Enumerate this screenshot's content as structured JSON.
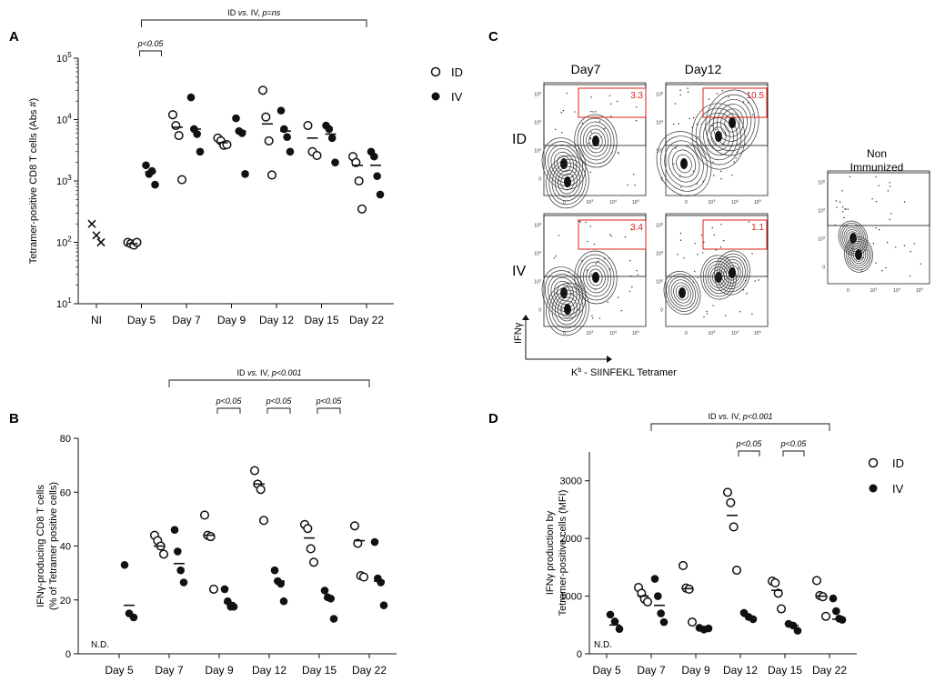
{
  "panel_letters": {
    "A": "A",
    "B": "B",
    "C": "C",
    "D": "D"
  },
  "legend": {
    "id": "ID",
    "iv": "IV"
  },
  "chart_data": [
    {
      "id": "A",
      "type": "scatter",
      "yscale": "log",
      "ylabel": "Tetramer-positive CD8 T cells (Abs #)",
      "ylim": [
        10,
        100000
      ],
      "yticks": [
        {
          "v": 10,
          "base": "10",
          "exp": "1"
        },
        {
          "v": 100,
          "base": "10",
          "exp": "2"
        },
        {
          "v": 1000,
          "base": "10",
          "exp": "3"
        },
        {
          "v": 10000,
          "base": "10",
          "exp": "4"
        },
        {
          "v": 100000,
          "base": "10",
          "exp": "5"
        }
      ],
      "categories": [
        "NI",
        "Day 5",
        "Day 7",
        "Day 9",
        "Day 12",
        "Day 15",
        "Day 22"
      ],
      "series": [
        {
          "name": "NI",
          "marker": "x",
          "points": [
            {
              "cat": 0,
              "values": [
                200,
                130,
                100
              ]
            }
          ],
          "medians": []
        },
        {
          "name": "ID",
          "marker": "open",
          "points": [
            {
              "cat": 1,
              "values": [
                100,
                95,
                90,
                100
              ]
            },
            {
              "cat": 2,
              "values": [
                12000,
                8000,
                5500,
                1050
              ]
            },
            {
              "cat": 3,
              "values": [
                5000,
                4500,
                3800,
                3900
              ]
            },
            {
              "cat": 4,
              "values": [
                30000,
                11000,
                4500,
                1250
              ]
            },
            {
              "cat": 5,
              "values": [
                8000,
                3000,
                2600
              ]
            },
            {
              "cat": 6,
              "values": [
                2500,
                2000,
                1000,
                350
              ]
            }
          ],
          "medians": [
            {
              "cat": 1,
              "v": 95
            },
            {
              "cat": 2,
              "v": 7500
            },
            {
              "cat": 3,
              "v": 4200
            },
            {
              "cat": 4,
              "v": 8500
            },
            {
              "cat": 5,
              "v": 5000
            },
            {
              "cat": 6,
              "v": 1800
            }
          ]
        },
        {
          "name": "IV",
          "marker": "filled",
          "points": [
            {
              "cat": 1,
              "values": [
                1800,
                1300,
                1450,
                870
              ]
            },
            {
              "cat": 2,
              "values": [
                23000,
                7000,
                5800,
                3000
              ]
            },
            {
              "cat": 3,
              "values": [
                10500,
                6500,
                6000,
                1300
              ]
            },
            {
              "cat": 4,
              "values": [
                14000,
                7000,
                5200,
                3000
              ]
            },
            {
              "cat": 5,
              "values": [
                8000,
                7000,
                5000,
                2000
              ]
            },
            {
              "cat": 6,
              "values": [
                3000,
                2500,
                1200,
                600
              ]
            }
          ],
          "medians": [
            {
              "cat": 1,
              "v": 1400
            },
            {
              "cat": 2,
              "v": 7000
            },
            {
              "cat": 3,
              "v": 6500
            },
            {
              "cat": 4,
              "v": 6500
            },
            {
              "cat": 5,
              "v": 5800
            },
            {
              "cat": 6,
              "v": 1800
            }
          ]
        }
      ],
      "annotations": [
        {
          "text": "p<0.05",
          "from": 1,
          "to": 1.4,
          "level": 1
        },
        {
          "prefix": "ID ",
          "italic": "vs.",
          "mid": " IV, ",
          "italic2": "p=ns",
          "from": 1,
          "to": 6,
          "level": 0
        }
      ]
    },
    {
      "id": "B",
      "type": "scatter",
      "yscale": "linear",
      "ylabel": "IFNγ-producing CD8 T cells",
      "ylabel2": "(% of Tetramer positive cells)",
      "ylim": [
        0,
        80
      ],
      "yticks": [
        {
          "v": 0,
          "t": "0"
        },
        {
          "v": 20,
          "t": "20"
        },
        {
          "v": 40,
          "t": "40"
        },
        {
          "v": 60,
          "t": "60"
        },
        {
          "v": 80,
          "t": "80"
        }
      ],
      "categories": [
        "Day 5",
        "Day 7",
        "Day 9",
        "Day 12",
        "Day 15",
        "Day 22"
      ],
      "nd": "N.D.",
      "series": [
        {
          "name": "ID",
          "marker": "open",
          "points": [
            {
              "cat": 1,
              "values": [
                44,
                42,
                40,
                37
              ]
            },
            {
              "cat": 2,
              "values": [
                51.5,
                44,
                43.5,
                24
              ]
            },
            {
              "cat": 3,
              "values": [
                68,
                63,
                61,
                49.5
              ]
            },
            {
              "cat": 4,
              "values": [
                48,
                46.5,
                39,
                34
              ]
            },
            {
              "cat": 5,
              "values": [
                47.5,
                41,
                29,
                28.5
              ]
            }
          ],
          "medians": [
            {
              "cat": 1,
              "v": 40
            },
            {
              "cat": 2,
              "v": 44
            },
            {
              "cat": 3,
              "v": 63
            },
            {
              "cat": 4,
              "v": 43
            },
            {
              "cat": 5,
              "v": 42
            }
          ]
        },
        {
          "name": "IV",
          "marker": "filled",
          "points": [
            {
              "cat": 0,
              "values": [
                33,
                15,
                13.5
              ]
            },
            {
              "cat": 1,
              "values": [
                46,
                38,
                31,
                26.5
              ]
            },
            {
              "cat": 2,
              "values": [
                24,
                19.5,
                17.5,
                17.5
              ]
            },
            {
              "cat": 3,
              "values": [
                31,
                27,
                26,
                19.5
              ]
            },
            {
              "cat": 4,
              "values": [
                23.5,
                21,
                20.5,
                13
              ]
            },
            {
              "cat": 5,
              "values": [
                41.5,
                28,
                26.5,
                18
              ]
            }
          ],
          "medians": [
            {
              "cat": 0,
              "v": 18
            },
            {
              "cat": 1,
              "v": 33.5
            },
            {
              "cat": 2,
              "v": 19
            },
            {
              "cat": 3,
              "v": 27
            },
            {
              "cat": 4,
              "v": 20.5
            },
            {
              "cat": 5,
              "v": 27
            }
          ]
        }
      ],
      "annotations": [
        {
          "text": "p<0.05",
          "from": 2,
          "to": 2.4,
          "level": 1
        },
        {
          "text": "p<0.05",
          "from": 3,
          "to": 3.4,
          "level": 1
        },
        {
          "text": "p<0.05",
          "from": 4,
          "to": 4.4,
          "level": 1
        },
        {
          "prefix": "ID ",
          "italic": "vs.",
          "mid": " IV, ",
          "italic2": "p<0.001",
          "from": 1,
          "to": 5,
          "level": 0
        }
      ]
    },
    {
      "id": "D",
      "type": "scatter",
      "yscale": "linear",
      "ylabel": "IFNγ production by",
      "ylabel2": "Tetramer-positive cells (MFI)",
      "ylim": [
        0,
        3500
      ],
      "yticks": [
        {
          "v": 0,
          "t": "0"
        },
        {
          "v": 1000,
          "t": "1000"
        },
        {
          "v": 2000,
          "t": "2000"
        },
        {
          "v": 3000,
          "t": "3000"
        }
      ],
      "categories": [
        "Day 5",
        "Day 7",
        "Day 9",
        "Day 12",
        "Day 15",
        "Day 22"
      ],
      "nd": "N.D.",
      "series": [
        {
          "name": "ID",
          "marker": "open",
          "points": [
            {
              "cat": 1,
              "values": [
                1150,
                1050,
                950,
                900
              ]
            },
            {
              "cat": 2,
              "values": [
                1530,
                1140,
                1120,
                550
              ]
            },
            {
              "cat": 3,
              "values": [
                2800,
                2620,
                2200,
                1450
              ]
            },
            {
              "cat": 4,
              "values": [
                1260,
                1230,
                1050,
                780
              ]
            },
            {
              "cat": 5,
              "values": [
                1270,
                1010,
                990,
                650
              ]
            }
          ],
          "medians": [
            {
              "cat": 1,
              "v": 1000
            },
            {
              "cat": 2,
              "v": 1130
            },
            {
              "cat": 3,
              "v": 2400
            },
            {
              "cat": 4,
              "v": 1100
            },
            {
              "cat": 5,
              "v": 1000
            }
          ]
        },
        {
          "name": "IV",
          "marker": "filled",
          "points": [
            {
              "cat": 0,
              "values": [
                680,
                560,
                430
              ]
            },
            {
              "cat": 1,
              "values": [
                1300,
                1000,
                700,
                550
              ]
            },
            {
              "cat": 2,
              "values": [
                450,
                420,
                440
              ]
            },
            {
              "cat": 3,
              "values": [
                710,
                640,
                600
              ]
            },
            {
              "cat": 4,
              "values": [
                520,
                490,
                400
              ]
            },
            {
              "cat": 5,
              "values": [
                960,
                740,
                610,
                590
              ]
            }
          ],
          "medians": [
            {
              "cat": 0,
              "v": 500
            },
            {
              "cat": 1,
              "v": 840
            },
            {
              "cat": 2,
              "v": 440
            },
            {
              "cat": 3,
              "v": 650
            },
            {
              "cat": 4,
              "v": 490
            },
            {
              "cat": 5,
              "v": 600
            }
          ]
        }
      ],
      "annotations": [
        {
          "text": "p<0.05",
          "from": 3,
          "to": 3.4,
          "level": 1
        },
        {
          "text": "p<0.05",
          "from": 4,
          "to": 4.4,
          "level": 1
        },
        {
          "prefix": "ID ",
          "italic": "vs.",
          "mid": " IV, ",
          "italic2": "p<0.001",
          "from": 1,
          "to": 5,
          "level": 0
        }
      ]
    }
  ],
  "flow_panel": {
    "col_labels": [
      "Day7",
      "Day12"
    ],
    "row_labels": [
      "ID",
      "IV"
    ],
    "gate_values": [
      [
        "3.3",
        "10.5"
      ],
      [
        "3.4",
        "1.1"
      ]
    ],
    "non_immunized_line1": "Non",
    "non_immunized_line2": "Immunized",
    "x_axis_label": "K",
    "x_axis_sup": "b",
    "x_axis_rest": " - SIINFEKL Tetramer",
    "y_axis_label": "IFNγ",
    "tick_labels_x": [
      "0",
      "10",
      "10",
      "10"
    ],
    "tick_exps_x": [
      "",
      "3",
      "4",
      "5"
    ],
    "tick_labels_y": [
      "0",
      "10",
      "10",
      "10"
    ],
    "tick_exps_y": [
      "",
      "3",
      "4",
      "5"
    ]
  },
  "colors": {
    "ink": "#111111",
    "gate": "#e01b1b"
  }
}
